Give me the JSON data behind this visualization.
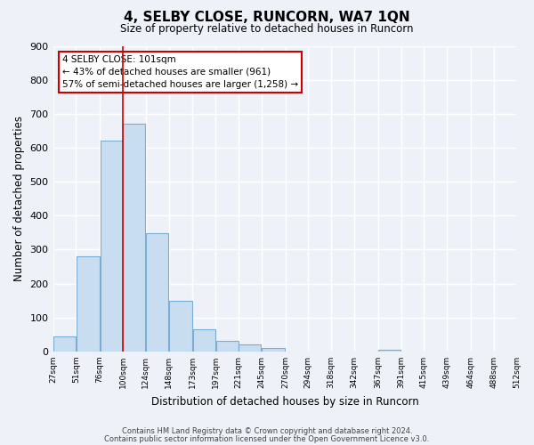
{
  "title": "4, SELBY CLOSE, RUNCORN, WA7 1QN",
  "subtitle": "Size of property relative to detached houses in Runcorn",
  "xlabel": "Distribution of detached houses by size in Runcorn",
  "ylabel": "Number of detached properties",
  "bar_edges": [
    27,
    51,
    76,
    100,
    124,
    148,
    173,
    197,
    221,
    245,
    270,
    294,
    318,
    342,
    367,
    391,
    415,
    439,
    464,
    488,
    512
  ],
  "bar_heights": [
    45,
    280,
    620,
    670,
    348,
    150,
    65,
    32,
    20,
    10,
    0,
    0,
    0,
    0,
    5,
    0,
    0,
    0,
    0,
    0
  ],
  "bar_color": "#c9ddf0",
  "bar_edge_color": "#7aadd4",
  "marker_value": 100,
  "marker_color": "#cc0000",
  "ylim": [
    0,
    900
  ],
  "yticks": [
    0,
    100,
    200,
    300,
    400,
    500,
    600,
    700,
    800,
    900
  ],
  "annotation_text_line1": "4 SELBY CLOSE: 101sqm",
  "annotation_text_line2": "← 43% of detached houses are smaller (961)",
  "annotation_text_line3": "57% of semi-detached houses are larger (1,258) →",
  "footer_line1": "Contains HM Land Registry data © Crown copyright and database right 2024.",
  "footer_line2": "Contains public sector information licensed under the Open Government Licence v3.0.",
  "background_color": "#eef2f8",
  "grid_color": "#ffffff",
  "tick_labels": [
    "27sqm",
    "51sqm",
    "76sqm",
    "100sqm",
    "124sqm",
    "148sqm",
    "173sqm",
    "197sqm",
    "221sqm",
    "245sqm",
    "270sqm",
    "294sqm",
    "318sqm",
    "342sqm",
    "367sqm",
    "391sqm",
    "415sqm",
    "439sqm",
    "464sqm",
    "488sqm",
    "512sqm"
  ]
}
